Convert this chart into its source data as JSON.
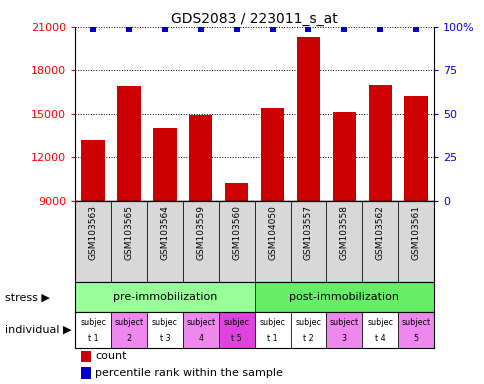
{
  "title": "GDS2083 / 223011_s_at",
  "samples": [
    "GSM103563",
    "GSM103565",
    "GSM103564",
    "GSM103559",
    "GSM103560",
    "GSM104050",
    "GSM103557",
    "GSM103558",
    "GSM103562",
    "GSM103561"
  ],
  "bar_values": [
    13200,
    16900,
    14000,
    14900,
    10200,
    15400,
    20300,
    15100,
    17000,
    16200
  ],
  "percentile_values": [
    99,
    99,
    99,
    99,
    99,
    99,
    99,
    99,
    99,
    99
  ],
  "ylim_left": [
    9000,
    21000
  ],
  "ylim_right": [
    0,
    100
  ],
  "yticks_left": [
    9000,
    12000,
    15000,
    18000,
    21000
  ],
  "yticks_right": [
    0,
    25,
    50,
    75,
    100
  ],
  "bar_color": "#cc0000",
  "dot_color": "#0000cc",
  "stress_groups": [
    {
      "label": "pre-immobilization",
      "start": 0,
      "end": 5,
      "color": "#99ff99"
    },
    {
      "label": "post-immobilization",
      "start": 5,
      "end": 10,
      "color": "#66ee66"
    }
  ],
  "indiv_line1": [
    "subjec",
    "subject",
    "subjec",
    "subject",
    "subjec",
    "subjec",
    "subjec",
    "subject",
    "subjec",
    "subject"
  ],
  "indiv_line2": [
    "t 1",
    "2",
    "t 3",
    "4",
    "t 5",
    "t 1",
    "t 2",
    "3",
    "t 4",
    "5"
  ],
  "individual_colors": [
    "#ffffff",
    "#ee88ee",
    "#ffffff",
    "#ee88ee",
    "#dd44dd",
    "#ffffff",
    "#ffffff",
    "#ee88ee",
    "#ffffff",
    "#ee88ee"
  ],
  "legend_count_color": "#cc0000",
  "legend_dot_color": "#0000cc",
  "bg_color": "#ffffff"
}
